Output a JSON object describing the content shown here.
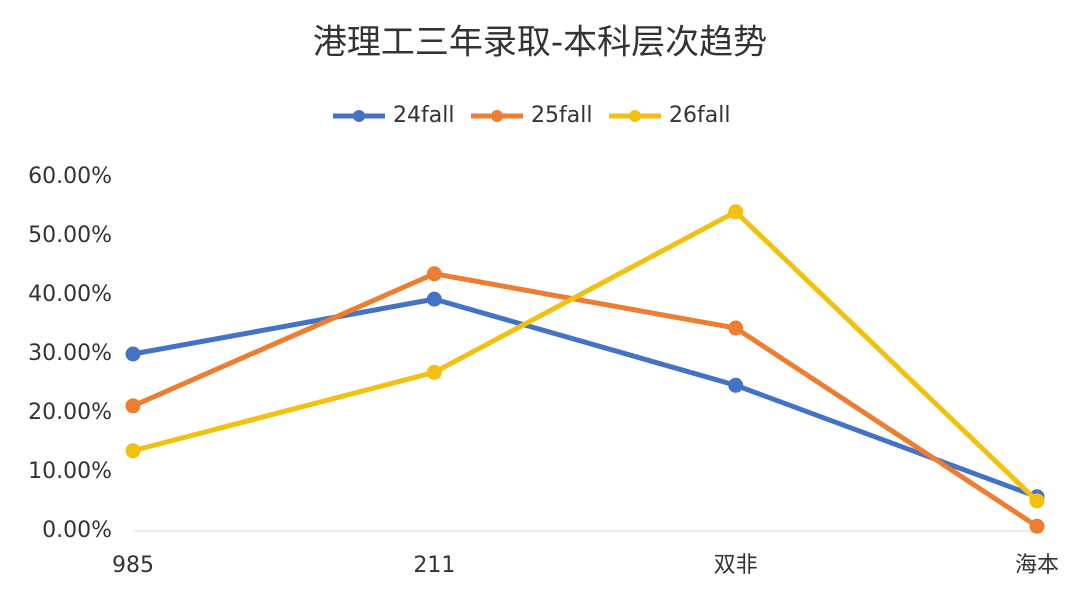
{
  "chart_data": {
    "type": "line",
    "title": "港理工三年录取-本科层次趋势",
    "categories": [
      "985",
      "211",
      "双非",
      "海本"
    ],
    "series": [
      {
        "name": "24fall",
        "color": "#4472c4",
        "values": [
          30.0,
          39.3,
          24.7,
          5.8
        ]
      },
      {
        "name": "25fall",
        "color": "#ed7d31",
        "values": [
          21.2,
          43.6,
          34.4,
          0.8
        ]
      },
      {
        "name": "26fall",
        "color": "#f2c10f",
        "values": [
          13.6,
          26.9,
          54.1,
          5.1
        ]
      }
    ],
    "ylim": [
      0,
      60
    ],
    "yticks": [
      {
        "value": 0,
        "label": "0.00%"
      },
      {
        "value": 10,
        "label": "10.00%"
      },
      {
        "value": 20,
        "label": "20.00%"
      },
      {
        "value": 30,
        "label": "30.00%"
      },
      {
        "value": 40,
        "label": "40.00%"
      },
      {
        "value": 50,
        "label": "50.00%"
      },
      {
        "value": 60,
        "label": "60.00%"
      }
    ],
    "legend": "top",
    "grid": false
  }
}
